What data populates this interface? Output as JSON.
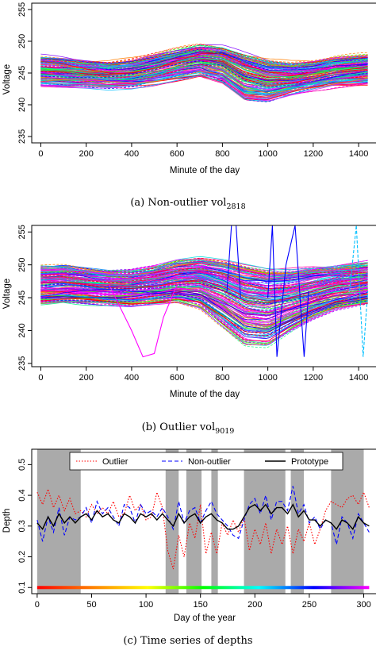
{
  "figures": [
    {
      "id": "a",
      "caption_prefix": "(a) Non-outlier vol",
      "caption_sub": "2818"
    },
    {
      "id": "b",
      "caption_prefix": "(b) Outlier vol",
      "caption_sub": "9019"
    },
    {
      "id": "c",
      "caption_prefix": "(c) Time series of depths",
      "caption_sub": ""
    }
  ],
  "chart_data": [
    {
      "type": "line",
      "xlabel": "Minute of the day",
      "ylabel": "Voltage",
      "xlim": [
        -40,
        1480
      ],
      "ylim": [
        234,
        256
      ],
      "xticks": [
        0,
        200,
        400,
        600,
        800,
        1000,
        1200,
        1400
      ],
      "yticks": [
        235,
        240,
        245,
        250,
        255
      ],
      "grid": false,
      "description_colors": [
        "#ff00ff",
        "#0000ff",
        "#00bfff",
        "#00ff80",
        "#ff8000",
        "#ff0000"
      ],
      "envelope": {
        "x": [
          0,
          100,
          200,
          300,
          400,
          500,
          600,
          700,
          800,
          900,
          1000,
          1100,
          1200,
          1300,
          1440
        ],
        "center": [
          245.5,
          245.3,
          245.0,
          244.8,
          245.0,
          245.6,
          246.4,
          247.0,
          246.6,
          244.6,
          243.8,
          244.0,
          244.6,
          245.3,
          245.6
        ],
        "upper": [
          247.5,
          247.2,
          246.8,
          246.6,
          247.0,
          247.8,
          248.6,
          249.3,
          249.0,
          248.0,
          247.0,
          246.6,
          246.8,
          247.4,
          247.8
        ],
        "lower": [
          243.0,
          242.8,
          242.8,
          242.6,
          242.8,
          243.4,
          244.0,
          244.6,
          243.4,
          240.6,
          240.4,
          241.6,
          242.4,
          243.0,
          243.4
        ]
      }
    },
    {
      "type": "line",
      "xlabel": "Minute of the day",
      "ylabel": "Voltage",
      "xlim": [
        -40,
        1480
      ],
      "ylim": [
        234.5,
        256
      ],
      "xticks": [
        0,
        200,
        400,
        600,
        800,
        1000,
        1200,
        1400
      ],
      "yticks": [
        235,
        240,
        245,
        250,
        255
      ],
      "grid": false,
      "envelope": {
        "x": [
          0,
          100,
          200,
          300,
          400,
          500,
          600,
          700,
          800,
          900,
          1000,
          1100,
          1200,
          1300,
          1440
        ],
        "center": [
          247.0,
          247.2,
          247.0,
          246.8,
          246.8,
          247.0,
          247.4,
          247.6,
          246.6,
          245.0,
          244.6,
          245.2,
          246.0,
          246.8,
          247.2
        ],
        "upper": [
          250.0,
          250.0,
          249.5,
          249.0,
          249.0,
          249.6,
          250.6,
          251.0,
          250.6,
          250.0,
          249.4,
          249.4,
          249.8,
          250.0,
          250.5
        ],
        "lower": [
          244.0,
          244.2,
          244.0,
          243.8,
          243.6,
          244.0,
          244.4,
          243.5,
          240.5,
          237.5,
          237.2,
          239.5,
          241.5,
          243.0,
          244.0
        ]
      },
      "anomalies": [
        {
          "color": "#ff00ff",
          "x": [
            300,
            400,
            450,
            500,
            540,
            600
          ],
          "y": [
            247.0,
            240.0,
            236.0,
            236.5,
            242.0,
            247.0
          ]
        },
        {
          "color": "#0000ff",
          "x": [
            820,
            840,
            860,
            880
          ],
          "y": [
            246.0,
            256.0,
            256.0,
            245.0
          ]
        },
        {
          "color": "#0000ff",
          "x": [
            1000,
            1020,
            1040,
            1080,
            1120,
            1160,
            1180
          ],
          "y": [
            245.0,
            256.0,
            236.0,
            250.0,
            256.0,
            236.0,
            246.0
          ]
        },
        {
          "color": "#00bfff",
          "x": [
            1360,
            1390,
            1420,
            1440
          ],
          "y": [
            246.0,
            256.0,
            236.0,
            246.0
          ]
        }
      ]
    },
    {
      "type": "line",
      "xlabel": "Day of the year",
      "ylabel": "Depth",
      "xlim": [
        -5,
        312
      ],
      "ylim": [
        0.08,
        0.55
      ],
      "xticks": [
        0,
        50,
        100,
        150,
        200,
        250,
        300
      ],
      "yticks": [
        0.1,
        0.2,
        0.3,
        0.4,
        0.5
      ],
      "grid": false,
      "legend_position": "top",
      "series": [
        {
          "name": "Outlier",
          "color": "#ff0000",
          "style": "dotted",
          "x": [
            0,
            5,
            10,
            15,
            20,
            25,
            30,
            35,
            40,
            45,
            50,
            55,
            60,
            65,
            70,
            75,
            80,
            85,
            90,
            95,
            100,
            105,
            110,
            115,
            120,
            125,
            130,
            135,
            140,
            145,
            150,
            155,
            160,
            165,
            170,
            175,
            180,
            185,
            190,
            195,
            200,
            205,
            210,
            215,
            220,
            225,
            230,
            235,
            240,
            245,
            250,
            255,
            260,
            265,
            270,
            275,
            280,
            285,
            290,
            295,
            300,
            305
          ],
          "y": [
            0.41,
            0.37,
            0.42,
            0.36,
            0.4,
            0.35,
            0.39,
            0.34,
            0.35,
            0.33,
            0.37,
            0.34,
            0.36,
            0.34,
            0.38,
            0.33,
            0.34,
            0.4,
            0.35,
            0.37,
            0.32,
            0.33,
            0.41,
            0.36,
            0.22,
            0.16,
            0.27,
            0.2,
            0.31,
            0.26,
            0.37,
            0.21,
            0.28,
            0.21,
            0.31,
            0.27,
            0.32,
            0.28,
            0.33,
            0.22,
            0.29,
            0.24,
            0.31,
            0.21,
            0.29,
            0.24,
            0.3,
            0.21,
            0.29,
            0.25,
            0.31,
            0.24,
            0.29,
            0.35,
            0.38,
            0.37,
            0.36,
            0.39,
            0.4,
            0.37,
            0.41,
            0.36
          ]
        },
        {
          "name": "Non-outlier",
          "color": "#0000ff",
          "style": "dashed",
          "x": [
            0,
            5,
            10,
            15,
            20,
            25,
            30,
            35,
            40,
            45,
            50,
            55,
            60,
            65,
            70,
            75,
            80,
            85,
            90,
            95,
            100,
            105,
            110,
            115,
            120,
            125,
            130,
            135,
            140,
            145,
            150,
            155,
            160,
            165,
            170,
            175,
            180,
            185,
            190,
            195,
            200,
            205,
            210,
            215,
            220,
            225,
            230,
            235,
            240,
            245,
            250,
            255,
            260,
            265,
            270,
            275,
            280,
            285,
            290,
            295,
            300,
            305
          ],
          "y": [
            0.32,
            0.25,
            0.33,
            0.28,
            0.36,
            0.27,
            0.33,
            0.32,
            0.33,
            0.36,
            0.31,
            0.38,
            0.34,
            0.36,
            0.33,
            0.3,
            0.37,
            0.36,
            0.31,
            0.37,
            0.34,
            0.35,
            0.33,
            0.36,
            0.33,
            0.29,
            0.38,
            0.31,
            0.35,
            0.36,
            0.31,
            0.35,
            0.38,
            0.34,
            0.32,
            0.3,
            0.27,
            0.26,
            0.32,
            0.37,
            0.39,
            0.34,
            0.4,
            0.32,
            0.38,
            0.38,
            0.35,
            0.43,
            0.34,
            0.37,
            0.31,
            0.33,
            0.29,
            0.32,
            0.31,
            0.24,
            0.33,
            0.31,
            0.26,
            0.34,
            0.31,
            0.28
          ]
        },
        {
          "name": "Prototype",
          "color": "#000000",
          "style": "solid",
          "x": [
            0,
            5,
            10,
            15,
            20,
            25,
            30,
            35,
            40,
            45,
            50,
            55,
            60,
            65,
            70,
            75,
            80,
            85,
            90,
            95,
            100,
            105,
            110,
            115,
            120,
            125,
            130,
            135,
            140,
            145,
            150,
            155,
            160,
            165,
            170,
            175,
            180,
            185,
            190,
            195,
            200,
            205,
            210,
            215,
            220,
            225,
            230,
            235,
            240,
            245,
            250,
            255,
            260,
            265,
            270,
            275,
            280,
            285,
            290,
            295,
            300,
            305
          ],
          "y": [
            0.31,
            0.29,
            0.33,
            0.3,
            0.34,
            0.31,
            0.33,
            0.31,
            0.33,
            0.34,
            0.32,
            0.35,
            0.33,
            0.34,
            0.32,
            0.31,
            0.34,
            0.33,
            0.31,
            0.34,
            0.33,
            0.34,
            0.32,
            0.34,
            0.32,
            0.3,
            0.34,
            0.31,
            0.33,
            0.34,
            0.31,
            0.33,
            0.34,
            0.32,
            0.31,
            0.29,
            0.29,
            0.3,
            0.33,
            0.36,
            0.37,
            0.35,
            0.37,
            0.34,
            0.36,
            0.36,
            0.34,
            0.37,
            0.33,
            0.35,
            0.32,
            0.32,
            0.3,
            0.32,
            0.31,
            0.29,
            0.32,
            0.31,
            0.29,
            0.33,
            0.31,
            0.3
          ]
        }
      ],
      "shaded_intervals": [
        [
          0,
          40
        ],
        [
          118,
          130
        ],
        [
          137,
          151
        ],
        [
          160,
          166
        ],
        [
          190,
          228
        ],
        [
          233,
          245
        ],
        [
          270,
          300
        ]
      ],
      "baseline": {
        "y": 0.1,
        "x": [
          0,
          305
        ],
        "style": "rainbow"
      }
    }
  ]
}
